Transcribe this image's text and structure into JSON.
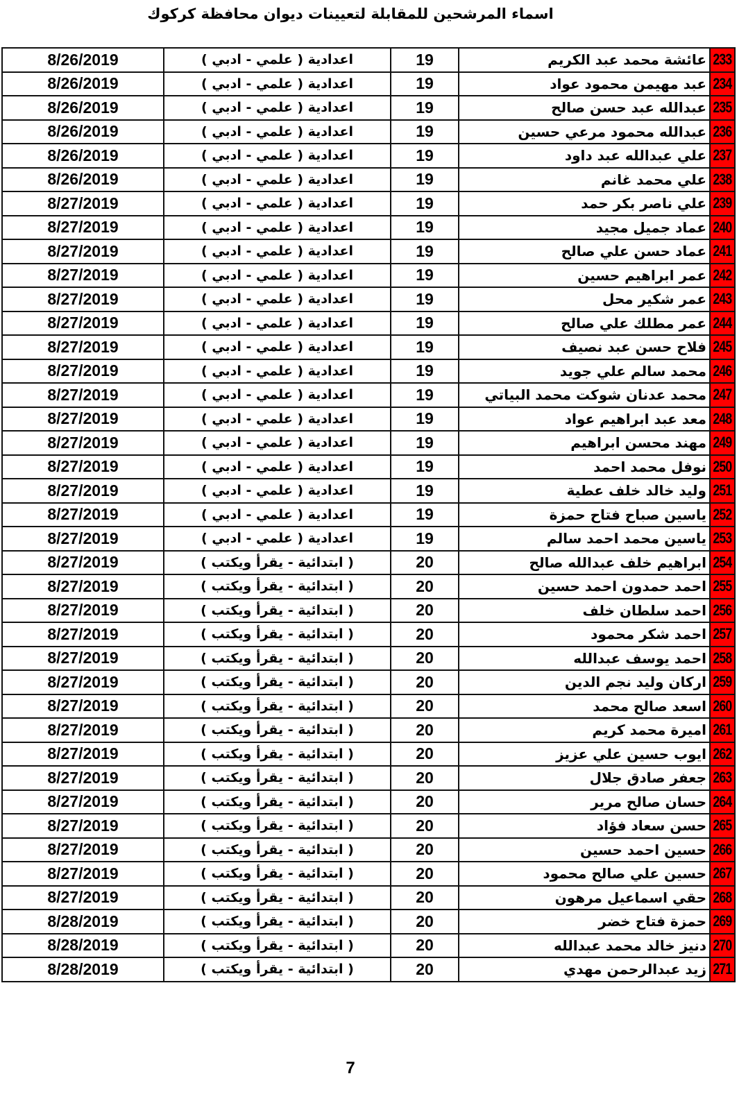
{
  "title": "اسماء المرشحين للمقابلة لتعيينات ديوان محافظة كركوك",
  "page_number": "7",
  "accent_color": "#ff0000",
  "rows": [
    {
      "id": "233",
      "name": "عائشة محمد عبد الكريم",
      "num": "19",
      "qual": "اعدادية ( علمي - ادبي )",
      "date": "8/26/2019"
    },
    {
      "id": "234",
      "name": "عبد مهيمن محمود عواد",
      "num": "19",
      "qual": "اعدادية ( علمي - ادبي )",
      "date": "8/26/2019"
    },
    {
      "id": "235",
      "name": "عبدالله عبد حسن صالح",
      "num": "19",
      "qual": "اعدادية ( علمي - ادبي )",
      "date": "8/26/2019"
    },
    {
      "id": "236",
      "name": "عبدالله محمود مرعي حسين",
      "num": "19",
      "qual": "اعدادية ( علمي - ادبي )",
      "date": "8/26/2019"
    },
    {
      "id": "237",
      "name": "علي عبدالله عبد داود",
      "num": "19",
      "qual": "اعدادية ( علمي - ادبي )",
      "date": "8/26/2019"
    },
    {
      "id": "238",
      "name": "علي محمد غانم",
      "num": "19",
      "qual": "اعدادية ( علمي - ادبي )",
      "date": "8/26/2019"
    },
    {
      "id": "239",
      "name": "علي ناصر بكر حمد",
      "num": "19",
      "qual": "اعدادية ( علمي - ادبي )",
      "date": "8/27/2019"
    },
    {
      "id": "240",
      "name": "عماد جميل مجيد",
      "num": "19",
      "qual": "اعدادية ( علمي - ادبي )",
      "date": "8/27/2019"
    },
    {
      "id": "241",
      "name": "عماد حسن علي صالح",
      "num": "19",
      "qual": "اعدادية ( علمي - ادبي )",
      "date": "8/27/2019"
    },
    {
      "id": "242",
      "name": "عمر ابراهيم حسين",
      "num": "19",
      "qual": "اعدادية ( علمي - ادبي )",
      "date": "8/27/2019"
    },
    {
      "id": "243",
      "name": "عمر شكير محل",
      "num": "19",
      "qual": "اعدادية ( علمي - ادبي )",
      "date": "8/27/2019"
    },
    {
      "id": "244",
      "name": "عمر مطلك علي صالح",
      "num": "19",
      "qual": "اعدادية ( علمي - ادبي )",
      "date": "8/27/2019"
    },
    {
      "id": "245",
      "name": "فلاح حسن عبد نصيف",
      "num": "19",
      "qual": "اعدادية ( علمي - ادبي )",
      "date": "8/27/2019"
    },
    {
      "id": "246",
      "name": "محمد سالم علي جويد",
      "num": "19",
      "qual": "اعدادية ( علمي - ادبي )",
      "date": "8/27/2019"
    },
    {
      "id": "247",
      "name": "محمد عدنان شوكت محمد البياتي",
      "num": "19",
      "qual": "اعدادية ( علمي - ادبي )",
      "date": "8/27/2019"
    },
    {
      "id": "248",
      "name": "معد عبد ابراهيم عواد",
      "num": "19",
      "qual": "اعدادية ( علمي - ادبي )",
      "date": "8/27/2019"
    },
    {
      "id": "249",
      "name": "مهند محسن ابراهيم",
      "num": "19",
      "qual": "اعدادية ( علمي - ادبي )",
      "date": "8/27/2019"
    },
    {
      "id": "250",
      "name": "نوفل محمد احمد",
      "num": "19",
      "qual": "اعدادية ( علمي - ادبي )",
      "date": "8/27/2019"
    },
    {
      "id": "251",
      "name": "وليد خالد خلف عطية",
      "num": "19",
      "qual": "اعدادية ( علمي - ادبي )",
      "date": "8/27/2019"
    },
    {
      "id": "252",
      "name": "ياسين صباح فتاح حمزة",
      "num": "19",
      "qual": "اعدادية ( علمي - ادبي )",
      "date": "8/27/2019"
    },
    {
      "id": "253",
      "name": "ياسين محمد احمد سالم",
      "num": "19",
      "qual": "اعدادية ( علمي - ادبي )",
      "date": "8/27/2019"
    },
    {
      "id": "254",
      "name": "ابراهيم خلف عبدالله صالح",
      "num": "20",
      "qual": "( ابتدائية - يقرأ ويكتب )",
      "date": "8/27/2019"
    },
    {
      "id": "255",
      "name": "احمد حمدون احمد حسين",
      "num": "20",
      "qual": "( ابتدائية - يقرأ ويكتب )",
      "date": "8/27/2019"
    },
    {
      "id": "256",
      "name": "احمد سلطان خلف",
      "num": "20",
      "qual": "( ابتدائية - يقرأ ويكتب )",
      "date": "8/27/2019"
    },
    {
      "id": "257",
      "name": "احمد شكر محمود",
      "num": "20",
      "qual": "( ابتدائية - يقرأ ويكتب )",
      "date": "8/27/2019"
    },
    {
      "id": "258",
      "name": "احمد يوسف عبدالله",
      "num": "20",
      "qual": "( ابتدائية - يقرأ ويكتب )",
      "date": "8/27/2019"
    },
    {
      "id": "259",
      "name": "اركان وليد نجم الدين",
      "num": "20",
      "qual": "( ابتدائية - يقرأ ويكتب )",
      "date": "8/27/2019"
    },
    {
      "id": "260",
      "name": "اسعد صالح محمد",
      "num": "20",
      "qual": "( ابتدائية - يقرأ ويكتب )",
      "date": "8/27/2019"
    },
    {
      "id": "261",
      "name": "اميرة محمد كريم",
      "num": "20",
      "qual": "( ابتدائية - يقرأ ويكتب )",
      "date": "8/27/2019"
    },
    {
      "id": "262",
      "name": "ايوب حسين علي عزيز",
      "num": "20",
      "qual": "( ابتدائية - يقرأ ويكتب )",
      "date": "8/27/2019"
    },
    {
      "id": "263",
      "name": "جعفر صادق جلال",
      "num": "20",
      "qual": "( ابتدائية - يقرأ ويكتب )",
      "date": "8/27/2019"
    },
    {
      "id": "264",
      "name": "حسان صالح مرير",
      "num": "20",
      "qual": "( ابتدائية - يقرأ ويكتب )",
      "date": "8/27/2019"
    },
    {
      "id": "265",
      "name": "حسن سعاد فؤاد",
      "num": "20",
      "qual": "( ابتدائية - يقرأ ويكتب )",
      "date": "8/27/2019"
    },
    {
      "id": "266",
      "name": "حسين احمد حسين",
      "num": "20",
      "qual": "( ابتدائية - يقرأ ويكتب )",
      "date": "8/27/2019"
    },
    {
      "id": "267",
      "name": "حسين علي صالح محمود",
      "num": "20",
      "qual": "( ابتدائية - يقرأ ويكتب )",
      "date": "8/27/2019"
    },
    {
      "id": "268",
      "name": "حقي اسماعيل مرهون",
      "num": "20",
      "qual": "( ابتدائية - يقرأ ويكتب )",
      "date": "8/27/2019"
    },
    {
      "id": "269",
      "name": "حمزة فتاح خضر",
      "num": "20",
      "qual": "( ابتدائية - يقرأ ويكتب )",
      "date": "8/28/2019"
    },
    {
      "id": "270",
      "name": "دنيز خالد محمد عبدالله",
      "num": "20",
      "qual": "( ابتدائية - يقرأ ويكتب )",
      "date": "8/28/2019"
    },
    {
      "id": "271",
      "name": "زيد عبدالرحمن مهدي",
      "num": "20",
      "qual": "( ابتدائية - يقرأ ويكتب )",
      "date": "8/28/2019"
    }
  ]
}
